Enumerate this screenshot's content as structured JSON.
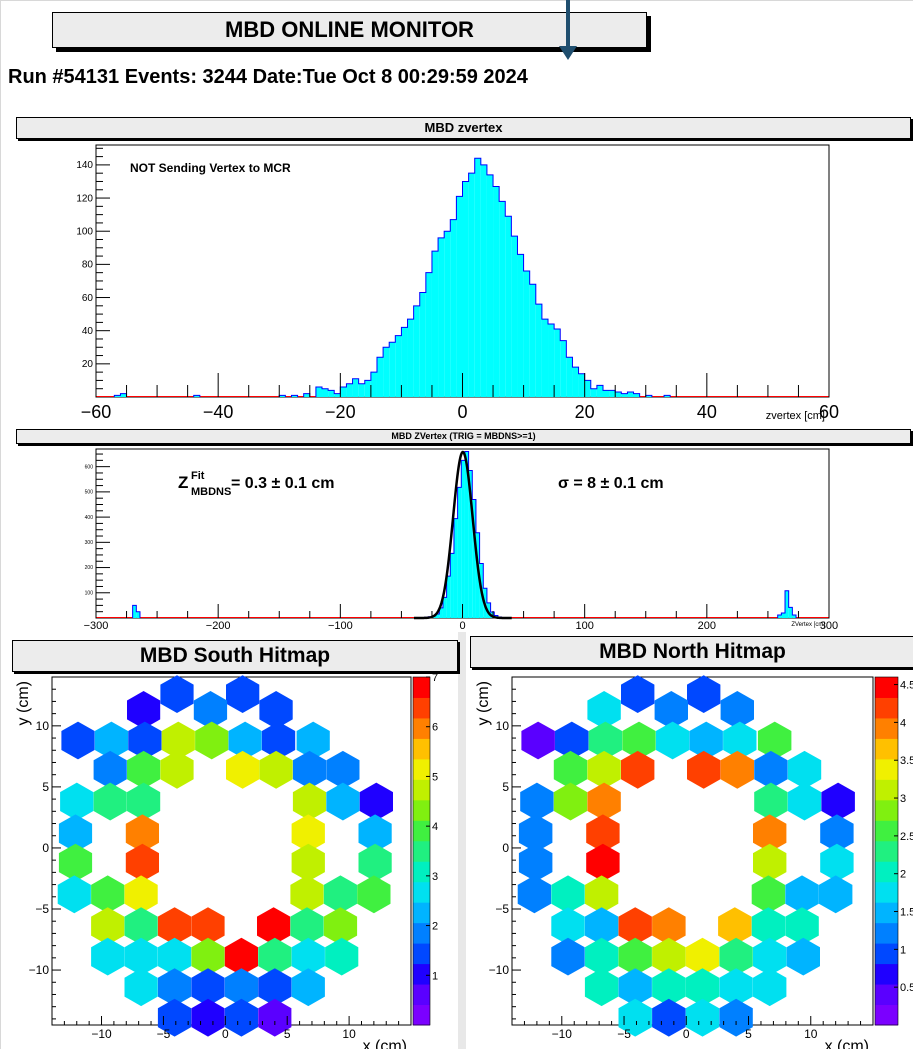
{
  "page": {
    "title": "MBD ONLINE MONITOR",
    "run_line": "Run #54131 Events: 3244 Date:Tue Oct  8 00:29:59 2024"
  },
  "colors": {
    "hist_fill": "#00ffff",
    "hist_line": "#0000ff",
    "baseline": "#ff0000",
    "fit_line": "#000000",
    "arrow": "#1f4e6e"
  },
  "chart_data": [
    {
      "type": "bar",
      "title": "MBD zvertex",
      "xlabel": "zvertex [cm]",
      "ylabel": "",
      "annotation": "NOT Sending Vertex to MCR",
      "xlim": [
        -60,
        60
      ],
      "ylim": [
        0,
        152
      ],
      "x_ticks": [
        -60,
        -40,
        -20,
        0,
        20,
        40,
        60
      ],
      "y_ticks": [
        20,
        40,
        60,
        80,
        100,
        120,
        140
      ],
      "bin_width": 1,
      "bins": [
        [
          -57,
          1
        ],
        [
          -56,
          2
        ],
        [
          -44,
          1
        ],
        [
          -30,
          1
        ],
        [
          -28,
          1
        ],
        [
          -26,
          2
        ],
        [
          -24,
          6
        ],
        [
          -23,
          5
        ],
        [
          -22,
          4
        ],
        [
          -21,
          2
        ],
        [
          -20,
          6
        ],
        [
          -19,
          8
        ],
        [
          -18,
          11
        ],
        [
          -17,
          8
        ],
        [
          -16,
          10
        ],
        [
          -15,
          15
        ],
        [
          -14,
          24
        ],
        [
          -13,
          30
        ],
        [
          -12,
          33
        ],
        [
          -11,
          37
        ],
        [
          -10,
          42
        ],
        [
          -9,
          47
        ],
        [
          -8,
          55
        ],
        [
          -7,
          63
        ],
        [
          -6,
          75
        ],
        [
          -5,
          88
        ],
        [
          -4,
          96
        ],
        [
          -3,
          100
        ],
        [
          -2,
          107
        ],
        [
          -1,
          121
        ],
        [
          0,
          130
        ],
        [
          1,
          135
        ],
        [
          2,
          144
        ],
        [
          3,
          140
        ],
        [
          4,
          134
        ],
        [
          5,
          127
        ],
        [
          6,
          118
        ],
        [
          7,
          109
        ],
        [
          8,
          97
        ],
        [
          9,
          86
        ],
        [
          10,
          76
        ],
        [
          11,
          68
        ],
        [
          12,
          56
        ],
        [
          13,
          47
        ],
        [
          14,
          44
        ],
        [
          15,
          41
        ],
        [
          16,
          34
        ],
        [
          17,
          24
        ],
        [
          18,
          18
        ],
        [
          19,
          14
        ],
        [
          20,
          10
        ],
        [
          21,
          5
        ],
        [
          22,
          7
        ],
        [
          23,
          4
        ],
        [
          24,
          4
        ],
        [
          25,
          3
        ],
        [
          26,
          2
        ],
        [
          27,
          3
        ],
        [
          28,
          2
        ],
        [
          30,
          1
        ],
        [
          33,
          1
        ]
      ]
    },
    {
      "type": "bar",
      "title": "MBD ZVertex (TRIG = MBDNS>=1)",
      "xlabel": "ZVertex [cm]",
      "ylabel": "",
      "xlim": [
        -300,
        300
      ],
      "ylim": [
        0,
        670
      ],
      "x_ticks": [
        -300,
        -200,
        -100,
        0,
        100,
        200,
        300
      ],
      "y_ticks": [
        100,
        200,
        300,
        400,
        500,
        600
      ],
      "fit_text_left": {
        "symbol": "Z",
        "sup": "Fit",
        "sub": "MBDNS",
        "value": "= 0.3 ± 0.1 cm"
      },
      "fit_text_right": "σ = 8 ± 0.1 cm",
      "fit": {
        "mean": 0.3,
        "sigma": 8,
        "amplitude": 658
      },
      "bin_width": 3,
      "bins": [
        [
          -270,
          50
        ],
        [
          -267,
          25
        ],
        [
          -31,
          3
        ],
        [
          -28,
          5
        ],
        [
          -25,
          8
        ],
        [
          -22,
          16
        ],
        [
          -19,
          40
        ],
        [
          -16,
          82
        ],
        [
          -13,
          166
        ],
        [
          -10,
          256
        ],
        [
          -7,
          394
        ],
        [
          -4,
          518
        ],
        [
          -1,
          625
        ],
        [
          2,
          660
        ],
        [
          5,
          585
        ],
        [
          8,
          470
        ],
        [
          11,
          338
        ],
        [
          14,
          216
        ],
        [
          17,
          118
        ],
        [
          20,
          60
        ],
        [
          23,
          24
        ],
        [
          26,
          10
        ],
        [
          29,
          4
        ],
        [
          32,
          2
        ],
        [
          258,
          12
        ],
        [
          261,
          20
        ],
        [
          264,
          108
        ],
        [
          267,
          42
        ],
        [
          270,
          12
        ]
      ]
    },
    {
      "type": "heatmap",
      "title": "MBD South Hitmap",
      "xlabel": "x (cm)",
      "ylabel": "y (cm)",
      "xlim": [
        -14,
        15
      ],
      "ylim": [
        -14.5,
        14
      ],
      "x_ticks": [
        -10,
        -5,
        0,
        5,
        10
      ],
      "y_ticks": [
        -10,
        -5,
        0,
        5,
        10
      ],
      "zlim": [
        0,
        7
      ],
      "z_ticks": [
        1,
        2,
        3,
        4,
        5,
        6,
        7
      ],
      "cells": [
        [
          -3.9,
          12.6,
          1.4
        ],
        [
          1.4,
          12.6,
          1.3
        ],
        [
          -6.6,
          11.3,
          1.2
        ],
        [
          -1.2,
          11.3,
          2.0
        ],
        [
          4.1,
          11.3,
          1.3
        ],
        [
          -11.9,
          8.8,
          1.4
        ],
        [
          -9.2,
          8.8,
          2.3
        ],
        [
          -6.5,
          8.8,
          1.5
        ],
        [
          -3.8,
          8.8,
          4.6
        ],
        [
          -1.1,
          8.8,
          4.2
        ],
        [
          1.6,
          8.8,
          2.2
        ],
        [
          4.3,
          8.8,
          1.6
        ],
        [
          7.1,
          8.8,
          2.2
        ],
        [
          -9.3,
          6.4,
          2.0
        ],
        [
          -6.6,
          6.4,
          3.8
        ],
        [
          -3.9,
          6.4,
          4.9
        ],
        [
          1.4,
          6.4,
          5.2
        ],
        [
          4.1,
          6.4,
          4.6
        ],
        [
          6.8,
          6.4,
          1.8
        ],
        [
          9.5,
          6.4,
          2.0
        ],
        [
          -12.0,
          3.8,
          2.8
        ],
        [
          -9.3,
          3.8,
          3.6
        ],
        [
          -6.6,
          3.8,
          3.3
        ],
        [
          6.8,
          3.8,
          4.8
        ],
        [
          9.5,
          3.8,
          2.1
        ],
        [
          12.2,
          3.8,
          1.0
        ],
        [
          -12.1,
          1.2,
          2.3
        ],
        [
          -6.7,
          1.2,
          6.0
        ],
        [
          6.7,
          1.2,
          5.3
        ],
        [
          12.1,
          1.2,
          2.1
        ],
        [
          -12.1,
          -1.2,
          3.8
        ],
        [
          -6.7,
          -1.2,
          6.2
        ],
        [
          6.7,
          -1.2,
          4.8
        ],
        [
          12.1,
          -1.2,
          3.7
        ],
        [
          -12.2,
          -3.8,
          2.6
        ],
        [
          -9.5,
          -3.8,
          3.8
        ],
        [
          -6.8,
          -3.8,
          5.1
        ],
        [
          6.6,
          -3.8,
          4.8
        ],
        [
          9.3,
          -3.8,
          3.5
        ],
        [
          12.0,
          -3.8,
          3.8
        ],
        [
          -9.5,
          -6.4,
          4.8
        ],
        [
          -6.8,
          -6.4,
          3.7
        ],
        [
          -4.1,
          -6.4,
          6.4
        ],
        [
          -1.4,
          -6.4,
          6.5
        ],
        [
          3.9,
          -6.4,
          6.9
        ],
        [
          6.6,
          -6.4,
          3.4
        ],
        [
          9.3,
          -6.4,
          4.3
        ],
        [
          -9.5,
          -8.9,
          2.6
        ],
        [
          -6.8,
          -8.9,
          2.7
        ],
        [
          -4.1,
          -8.9,
          2.6
        ],
        [
          -1.4,
          -8.9,
          4.2
        ],
        [
          1.3,
          -8.9,
          6.8
        ],
        [
          4.0,
          -8.9,
          3.5
        ],
        [
          6.7,
          -8.9,
          2.8
        ],
        [
          9.4,
          -8.9,
          3.2
        ],
        [
          -6.8,
          -11.4,
          2.7
        ],
        [
          -4.1,
          -11.4,
          1.8
        ],
        [
          -1.4,
          -11.4,
          1.6
        ],
        [
          1.3,
          -11.4,
          1.9
        ],
        [
          4.0,
          -11.4,
          1.6
        ],
        [
          6.7,
          -11.4,
          2.3
        ],
        [
          -4.1,
          -13.9,
          1.6
        ],
        [
          -1.4,
          -13.9,
          1.0
        ],
        [
          1.3,
          -13.9,
          1.6
        ],
        [
          4.0,
          -13.9,
          0.8
        ]
      ]
    },
    {
      "type": "heatmap",
      "title": "MBD North Hitmap",
      "xlabel": "x (cm)",
      "ylabel": "y (cm)",
      "xlim": [
        -14,
        15
      ],
      "ylim": [
        -14.5,
        14
      ],
      "x_ticks": [
        -10,
        -5,
        0,
        5,
        10
      ],
      "y_ticks": [
        -10,
        -5,
        0,
        5,
        10
      ],
      "zlim": [
        0,
        4.6
      ],
      "z_ticks": [
        0.5,
        1,
        1.5,
        2,
        2.5,
        3,
        3.5,
        4,
        4.5
      ],
      "cells": [
        [
          -3.9,
          12.6,
          1.0
        ],
        [
          1.4,
          12.6,
          1.0
        ],
        [
          -6.6,
          11.3,
          1.8
        ],
        [
          -1.2,
          11.3,
          1.3
        ],
        [
          4.1,
          11.3,
          1.2
        ],
        [
          -11.9,
          8.8,
          0.5
        ],
        [
          -9.2,
          8.8,
          1.0
        ],
        [
          -6.5,
          8.8,
          2.2
        ],
        [
          -3.8,
          8.8,
          2.6
        ],
        [
          -1.1,
          8.8,
          1.8
        ],
        [
          1.6,
          8.8,
          1.5
        ],
        [
          4.3,
          8.8,
          1.8
        ],
        [
          7.1,
          8.8,
          2.5
        ],
        [
          -9.3,
          6.4,
          2.6
        ],
        [
          -6.6,
          6.4,
          3.0
        ],
        [
          -3.9,
          6.4,
          4.2
        ],
        [
          1.4,
          6.4,
          4.1
        ],
        [
          4.1,
          6.4,
          3.8
        ],
        [
          6.8,
          6.4,
          1.3
        ],
        [
          9.5,
          6.4,
          1.7
        ],
        [
          -12.0,
          3.8,
          1.3
        ],
        [
          -9.3,
          3.8,
          2.9
        ],
        [
          -6.6,
          3.8,
          3.8
        ],
        [
          6.8,
          3.8,
          2.2
        ],
        [
          9.5,
          3.8,
          1.8
        ],
        [
          12.2,
          3.8,
          0.8
        ],
        [
          -12.1,
          1.2,
          1.3
        ],
        [
          -6.7,
          1.2,
          4.3
        ],
        [
          6.7,
          1.2,
          3.8
        ],
        [
          12.1,
          1.2,
          1.3
        ],
        [
          -12.1,
          -1.2,
          1.3
        ],
        [
          -6.7,
          -1.2,
          4.4
        ],
        [
          6.7,
          -1.2,
          3.0
        ],
        [
          12.1,
          -1.2,
          1.7
        ],
        [
          -12.2,
          -3.8,
          1.3
        ],
        [
          -9.5,
          -3.8,
          2.1
        ],
        [
          -6.8,
          -3.8,
          3.2
        ],
        [
          6.6,
          -3.8,
          2.6
        ],
        [
          9.3,
          -3.8,
          1.5
        ],
        [
          12.0,
          -3.8,
          1.5
        ],
        [
          -9.5,
          -6.4,
          1.7
        ],
        [
          -6.8,
          -6.4,
          1.6
        ],
        [
          -4.1,
          -6.4,
          4.3
        ],
        [
          -1.4,
          -6.4,
          3.8
        ],
        [
          3.9,
          -6.4,
          3.7
        ],
        [
          6.6,
          -6.4,
          2.0
        ],
        [
          9.3,
          -6.4,
          1.9
        ],
        [
          -9.5,
          -8.9,
          1.2
        ],
        [
          -6.8,
          -8.9,
          2.1
        ],
        [
          -4.1,
          -8.9,
          2.6
        ],
        [
          -1.4,
          -8.9,
          3.1
        ],
        [
          1.3,
          -8.9,
          3.3
        ],
        [
          4.0,
          -8.9,
          2.4
        ],
        [
          6.7,
          -8.9,
          1.8
        ],
        [
          9.4,
          -8.9,
          1.4
        ],
        [
          -6.8,
          -11.4,
          1.9
        ],
        [
          -4.1,
          -11.4,
          1.6
        ],
        [
          -1.4,
          -11.4,
          1.9
        ],
        [
          1.3,
          -11.4,
          2.1
        ],
        [
          4.0,
          -11.4,
          1.7
        ],
        [
          6.7,
          -11.4,
          1.8
        ],
        [
          -4.1,
          -13.9,
          1.7
        ],
        [
          -1.4,
          -13.9,
          1.0
        ],
        [
          1.3,
          -13.9,
          1.8
        ],
        [
          4.0,
          -13.9,
          1.3
        ]
      ]
    }
  ]
}
